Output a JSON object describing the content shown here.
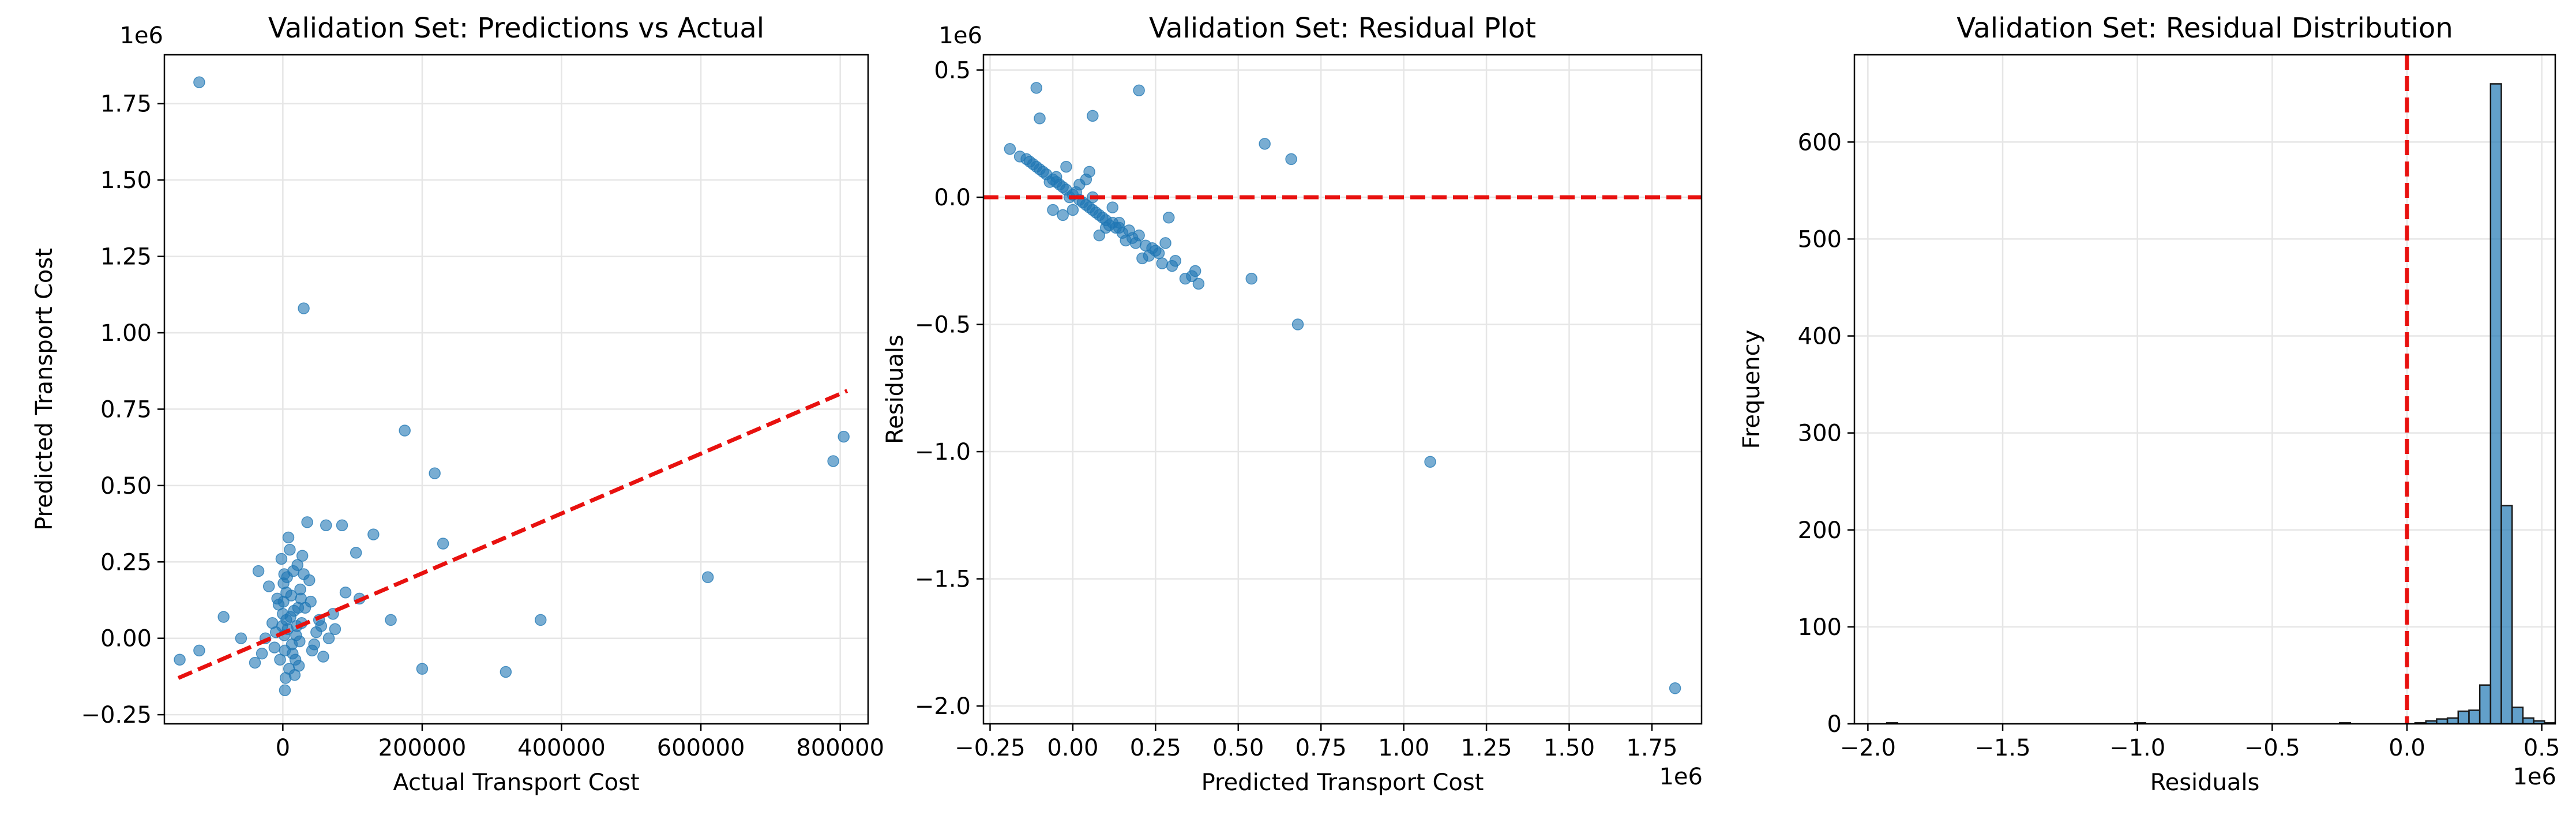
{
  "chart_data": [
    {
      "type": "scatter",
      "title": "Validation Set: Predictions vs Actual",
      "xlabel": "Actual Transport Cost",
      "ylabel": "Predicted Transport Cost",
      "y_offset_label": "1e6",
      "x_offset_label": "",
      "xlim": [
        -170000,
        840000
      ],
      "ylim": [
        -0.28,
        1.91
      ],
      "x_ticks": [
        0,
        200000,
        400000,
        600000,
        800000
      ],
      "x_tick_labels": [
        "0",
        "200000",
        "400000",
        "600000",
        "800000"
      ],
      "y_ticks": [
        -0.25,
        0,
        0.25,
        0.5,
        0.75,
        1.0,
        1.25,
        1.5,
        1.75
      ],
      "y_tick_labels": [
        "−0.25",
        "0.00",
        "0.25",
        "0.50",
        "0.75",
        "1.00",
        "1.25",
        "1.50",
        "1.75"
      ],
      "grid": true,
      "point_color": "#1f77b4",
      "ref_line_color": "#e8110f",
      "ref_line": {
        "x": [
          -150000,
          810000
        ],
        "y": [
          -0.13,
          0.81
        ]
      },
      "points": [
        [
          -120000,
          1.82
        ],
        [
          30000,
          1.08
        ],
        [
          175000,
          0.68
        ],
        [
          218000,
          0.54
        ],
        [
          230000,
          0.31
        ],
        [
          805000,
          0.66
        ],
        [
          790000,
          0.58
        ],
        [
          610000,
          0.2
        ],
        [
          370000,
          0.06
        ],
        [
          320000,
          -0.11
        ],
        [
          200000,
          -0.1
        ],
        [
          155000,
          0.06
        ],
        [
          130000,
          0.34
        ],
        [
          110000,
          0.13
        ],
        [
          105000,
          0.28
        ],
        [
          90000,
          0.15
        ],
        [
          85000,
          0.37
        ],
        [
          72000,
          0.08
        ],
        [
          62000,
          0.37
        ],
        [
          55000,
          0.04
        ],
        [
          45000,
          -0.02
        ],
        [
          40000,
          0.12
        ],
        [
          35000,
          0.38
        ],
        [
          30000,
          0.21
        ],
        [
          28000,
          0.27
        ],
        [
          25000,
          0.16
        ],
        [
          22000,
          0.1
        ],
        [
          20000,
          0.04
        ],
        [
          18000,
          -0.07
        ],
        [
          15000,
          0.22
        ],
        [
          12000,
          0.14
        ],
        [
          10000,
          0.29
        ],
        [
          8000,
          0.33
        ],
        [
          6000,
          0.2
        ],
        [
          5000,
          0.06
        ],
        [
          4000,
          -0.13
        ],
        [
          3000,
          -0.04
        ],
        [
          2000,
          0.01
        ],
        [
          1000,
          0.18
        ],
        [
          0,
          0.08
        ],
        [
          -2000,
          0.26
        ],
        [
          -4000,
          -0.07
        ],
        [
          -6000,
          0.11
        ],
        [
          -8000,
          0.13
        ],
        [
          -10000,
          0.02
        ],
        [
          -12000,
          -0.03
        ],
        [
          -15000,
          0.05
        ],
        [
          -20000,
          0.17
        ],
        [
          -25000,
          0.0
        ],
        [
          -30000,
          -0.05
        ],
        [
          -35000,
          0.22
        ],
        [
          -40000,
          -0.08
        ],
        [
          -60000,
          0.0
        ],
        [
          -85000,
          0.07
        ],
        [
          -120000,
          -0.04
        ],
        [
          -148000,
          -0.07
        ],
        [
          2000,
          0.21
        ],
        [
          5000,
          0.15
        ],
        [
          7000,
          0.03
        ],
        [
          9000,
          -0.1
        ],
        [
          11000,
          0.07
        ],
        [
          13000,
          -0.02
        ],
        [
          16000,
          0.09
        ],
        [
          19000,
          0.01
        ],
        [
          24000,
          -0.01
        ],
        [
          27000,
          0.05
        ],
        [
          32000,
          0.1
        ],
        [
          38000,
          0.19
        ],
        [
          42000,
          -0.04
        ],
        [
          48000,
          0.02
        ],
        [
          52000,
          0.06
        ],
        [
          58000,
          -0.06
        ],
        [
          66000,
          0.0
        ],
        [
          75000,
          0.03
        ],
        [
          3000,
          -0.17
        ],
        [
          1000,
          0.12
        ],
        [
          -1000,
          0.04
        ],
        [
          14000,
          -0.05
        ],
        [
          21000,
          0.24
        ],
        [
          26000,
          0.13
        ],
        [
          17000,
          -0.12
        ],
        [
          23000,
          -0.09
        ]
      ]
    },
    {
      "type": "scatter",
      "title": "Validation Set: Residual Plot",
      "xlabel": "Predicted Transport Cost",
      "ylabel": "Residuals",
      "y_offset_label": "1e6",
      "x_offset_label": "1e6",
      "xlim": [
        -0.27,
        1.9
      ],
      "ylim": [
        -2.07,
        0.56
      ],
      "x_ticks": [
        -0.25,
        0,
        0.25,
        0.5,
        0.75,
        1.0,
        1.25,
        1.5,
        1.75
      ],
      "x_tick_labels": [
        "−0.25",
        "0.00",
        "0.25",
        "0.50",
        "0.75",
        "1.00",
        "1.25",
        "1.50",
        "1.75"
      ],
      "y_ticks": [
        -2.0,
        -1.5,
        -1.0,
        -0.5,
        0.0,
        0.5
      ],
      "y_tick_labels": [
        "−2.0",
        "−1.5",
        "−1.0",
        "−0.5",
        "0.0",
        "0.5"
      ],
      "grid": true,
      "point_color": "#1f77b4",
      "ref_line_color": "#e8110f",
      "hline_y": 0,
      "points": [
        [
          1.82,
          -1.93
        ],
        [
          1.08,
          -1.04
        ],
        [
          0.68,
          -0.5
        ],
        [
          0.54,
          -0.32
        ],
        [
          0.58,
          0.21
        ],
        [
          0.66,
          0.15
        ],
        [
          0.2,
          0.42
        ],
        [
          0.06,
          0.32
        ],
        [
          -0.11,
          0.43
        ],
        [
          -0.1,
          0.31
        ],
        [
          0.38,
          -0.34
        ],
        [
          0.37,
          -0.29
        ],
        [
          0.34,
          -0.32
        ],
        [
          0.31,
          -0.25
        ],
        [
          0.29,
          -0.08
        ],
        [
          0.28,
          -0.18
        ],
        [
          0.27,
          -0.26
        ],
        [
          0.22,
          -0.19
        ],
        [
          0.21,
          -0.24
        ],
        [
          0.2,
          -0.15
        ],
        [
          0.17,
          -0.13
        ],
        [
          0.14,
          -0.12
        ],
        [
          0.12,
          -0.1
        ],
        [
          0.1,
          -0.09
        ],
        [
          0.08,
          -0.07
        ],
        [
          0.06,
          -0.05
        ],
        [
          0.04,
          -0.03
        ],
        [
          0.02,
          -0.01
        ],
        [
          0.0,
          0.01
        ],
        [
          -0.02,
          0.03
        ],
        [
          -0.04,
          0.05
        ],
        [
          -0.06,
          0.07
        ],
        [
          -0.08,
          0.09
        ],
        [
          -0.1,
          0.11
        ],
        [
          -0.12,
          0.13
        ],
        [
          -0.14,
          0.15
        ],
        [
          -0.16,
          0.16
        ],
        [
          -0.19,
          0.19
        ],
        [
          -0.05,
          0.08
        ],
        [
          -0.07,
          0.06
        ],
        [
          -0.03,
          0.04
        ],
        [
          0.01,
          0.02
        ],
        [
          0.03,
          -0.02
        ],
        [
          0.05,
          -0.04
        ],
        [
          0.07,
          -0.06
        ],
        [
          0.09,
          -0.08
        ],
        [
          0.11,
          -0.11
        ],
        [
          0.13,
          -0.12
        ],
        [
          0.15,
          -0.14
        ],
        [
          0.18,
          -0.16
        ],
        [
          0.24,
          -0.2
        ],
        [
          0.26,
          -0.22
        ],
        [
          0.05,
          0.1
        ],
        [
          -0.02,
          0.12
        ],
        [
          0.0,
          -0.05
        ],
        [
          0.08,
          -0.15
        ],
        [
          -0.06,
          -0.05
        ],
        [
          -0.03,
          -0.07
        ],
        [
          0.12,
          -0.04
        ],
        [
          0.16,
          -0.17
        ],
        [
          0.25,
          -0.21
        ],
        [
          0.19,
          -0.18
        ],
        [
          0.06,
          0.0
        ],
        [
          -0.09,
          0.1
        ],
        [
          -0.11,
          0.12
        ],
        [
          0.02,
          0.05
        ],
        [
          0.1,
          -0.12
        ],
        [
          0.14,
          -0.1
        ],
        [
          0.3,
          -0.27
        ],
        [
          0.36,
          -0.31
        ],
        [
          -0.05,
          0.06
        ],
        [
          0.04,
          0.07
        ],
        [
          0.23,
          -0.23
        ],
        [
          -0.13,
          0.14
        ],
        [
          -0.01,
          0.0
        ]
      ]
    },
    {
      "type": "bar",
      "subtype": "histogram",
      "title": "Validation Set: Residual Distribution",
      "xlabel": "Residuals",
      "ylabel": "Frequency",
      "x_offset_label": "1e6",
      "y_offset_label": "",
      "xlim": [
        -2.05,
        0.55
      ],
      "ylim": [
        0,
        690
      ],
      "x_ticks": [
        -2.0,
        -1.5,
        -1.0,
        -0.5,
        0.0,
        0.5
      ],
      "x_tick_labels": [
        "−2.0",
        "−1.5",
        "−1.0",
        "−0.5",
        "0.0",
        "0.5"
      ],
      "y_ticks": [
        0,
        100,
        200,
        300,
        400,
        500,
        600
      ],
      "y_tick_labels": [
        "0",
        "100",
        "200",
        "300",
        "400",
        "500",
        "600"
      ],
      "grid": true,
      "bar_color": "#1f77b4",
      "ref_line_color": "#e8110f",
      "vline_x": 0,
      "bin_edges_start": -1.93,
      "bin_width": 0.04,
      "counts": [
        1,
        0,
        0,
        0,
        0,
        0,
        0,
        0,
        0,
        0,
        0,
        0,
        0,
        0,
        0,
        0,
        0,
        0,
        0,
        0,
        0,
        0,
        0,
        1,
        0,
        0,
        0,
        0,
        0,
        0,
        0,
        0,
        0,
        0,
        0,
        0,
        0,
        0,
        0,
        0,
        0,
        0,
        1,
        0,
        0,
        0,
        0,
        0,
        0,
        1,
        3,
        5,
        6,
        13,
        14,
        40,
        660,
        225,
        17,
        6,
        3,
        1,
        2,
        1,
        1,
        0
      ]
    }
  ]
}
